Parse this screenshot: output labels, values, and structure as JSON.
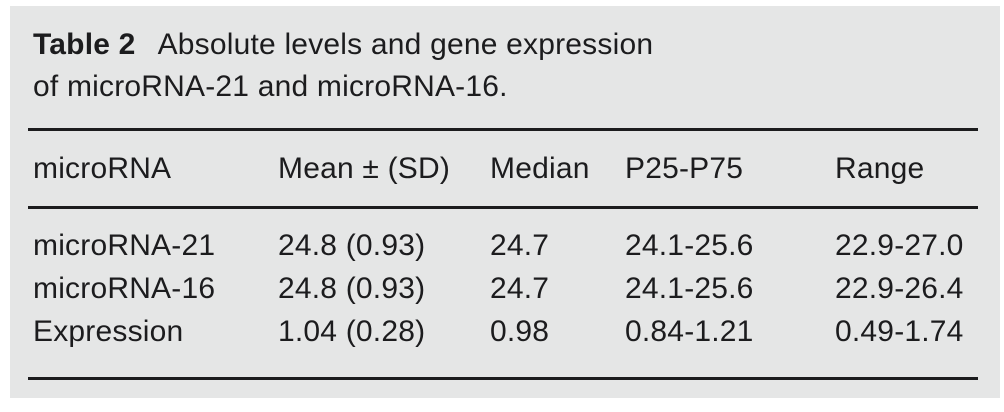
{
  "table": {
    "label": "Table 2",
    "title_line1": "Absolute levels and gene expression",
    "title_line2": "of microRNA-21 and microRNA-16.",
    "columns": [
      "microRNA",
      "Mean ± (SD)",
      "Median",
      "P25-P75",
      "Range"
    ],
    "rows": [
      [
        "microRNA-21",
        "24.8 (0.93)",
        "24.7",
        "24.1-25.6",
        "22.9-27.0"
      ],
      [
        "microRNA-16",
        "24.8 (0.93)",
        "24.7",
        "24.1-25.6",
        "22.9-26.4"
      ],
      [
        "Expression",
        "1.04 (0.28)",
        "0.98",
        "0.84-1.21",
        "0.49-1.74"
      ]
    ]
  },
  "colors": {
    "panel_bg": "#e5e6e6",
    "text": "#1c1c1e",
    "rule": "#1c1c1e"
  }
}
